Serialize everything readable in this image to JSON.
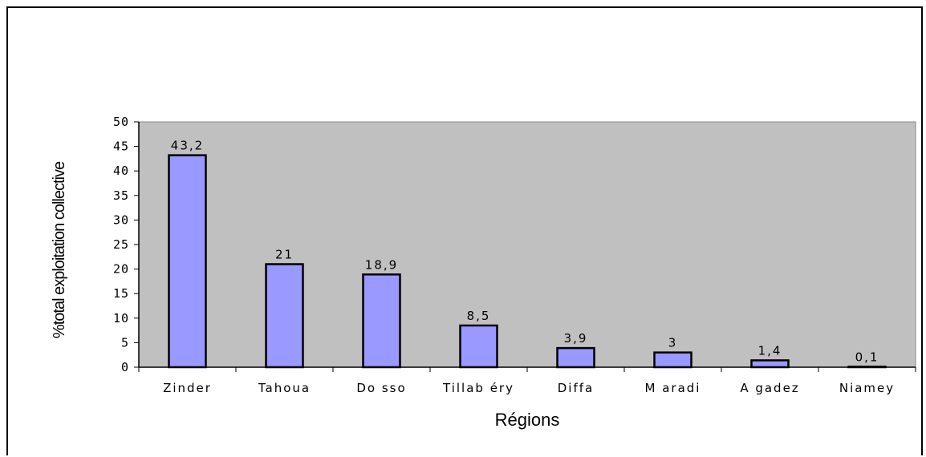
{
  "chart_data": {
    "type": "bar",
    "title": "",
    "xlabel": "Régions",
    "ylabel": "%total exploitation collective",
    "categories": [
      "Zinder",
      "Tahoua",
      "Dosso",
      "Tillabéry",
      "Diffa",
      "Maradi",
      "Agadez",
      "Niamey"
    ],
    "category_labels": [
      "Zinder",
      "Tahoua",
      "Do sso",
      "Tillab éry",
      "Diffa",
      "M aradi",
      "A gadez",
      "Niamey"
    ],
    "values": [
      43.2,
      21,
      18.9,
      8.5,
      3.9,
      3,
      1.4,
      0.1
    ],
    "data_labels": [
      "43,2",
      "21",
      "18,9",
      "8,5",
      "3,9",
      "3",
      "1,4",
      "0,1"
    ],
    "ylim": [
      0,
      50
    ],
    "yticks": [
      "0",
      "5",
      "10",
      "15",
      "20",
      "25",
      "30",
      "35",
      "40",
      "45",
      "50"
    ],
    "grid": false,
    "legend": "none",
    "colors": {
      "bar_fill": "#9999ff",
      "bar_stroke": "#000000",
      "plot_background": "#c0c0c0"
    }
  }
}
